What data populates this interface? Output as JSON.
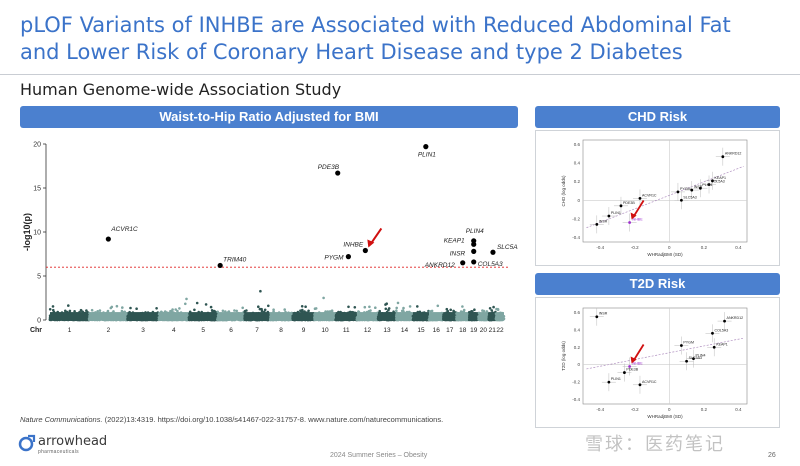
{
  "slide": {
    "title_line1": "pLOF Variants of INHBE are Associated with Reduced Abdominal Fat",
    "title_line2": "and Lower Risk of Coronary Heart Disease and type 2 Diabetes",
    "subtitle": "Human Genome-wide Association Study",
    "citation_journal": "Nature Communications.",
    "citation_rest": " (2022)13:4319. https://doi.org/10.1038/s41467-022-31757-8. www.nature.com/naturecommunications.",
    "footer": "2024 Summer Series – Obesity",
    "page_number": "26",
    "logo_name": "arrowhead",
    "logo_sub": "pharmaceuticals",
    "watermark": "雪球：医药笔记"
  },
  "colors": {
    "title_blue": "#3b73c9",
    "banner_blue": "#4b80cf",
    "manhattan_dark": "#2f5552",
    "manhattan_light": "#7fa6a2",
    "threshold_red": "#e02020",
    "arrow_red": "#d01010",
    "highlight_purple": "#a030d0"
  },
  "chart_data": [
    {
      "type": "scatter",
      "subtype": "manhattan",
      "title": "Waist-to-Hip Ratio Adjusted for BMI",
      "ylabel": "-log10(p)",
      "xlabel": "Chr",
      "ylim": [
        0,
        20
      ],
      "yticks": [
        0,
        5,
        10,
        15,
        20
      ],
      "chromosomes": [
        "1",
        "2",
        "3",
        "4",
        "5",
        "6",
        "7",
        "8",
        "9",
        "10",
        "11",
        "12",
        "13",
        "14",
        "15",
        "16",
        "17",
        "18",
        "19",
        "20",
        "21",
        "22"
      ],
      "chrom_peaks": [
        2.6,
        4.1,
        2.4,
        4.2,
        2.3,
        6.4,
        3.8,
        3.9,
        2.2,
        3.6,
        3.3,
        3.0,
        3.3,
        3.1,
        3.0,
        4.4,
        4.0,
        6.2,
        5.2,
        6.8,
        3.4,
        2.8
      ],
      "threshold": 6,
      "genes": [
        {
          "label": "ACVR1C",
          "chr": "2",
          "pos": 0.5,
          "y": 9.2
        },
        {
          "label": "TRIM40",
          "chr": "6",
          "pos": 0.1,
          "y": 6.2
        },
        {
          "label": "PDE3B",
          "chr": "11",
          "pos": 0.1,
          "y": 16.7
        },
        {
          "label": "PYGM",
          "chr": "11",
          "pos": 0.6,
          "y": 7.2
        },
        {
          "label": "INHBE",
          "chr": "12",
          "pos": 0.4,
          "y": 7.9
        },
        {
          "label": "PLIN1",
          "chr": "15",
          "pos": 0.8,
          "y": 19.7
        },
        {
          "label": "KEAP1",
          "chr": "19",
          "pos": 0.5,
          "y": 8.6
        },
        {
          "label": "PLIN4",
          "chr": "19",
          "pos": 0.5,
          "y": 9.0
        },
        {
          "label": "INSR",
          "chr": "19",
          "pos": 0.5,
          "y": 7.8
        },
        {
          "label": "ANKRD12",
          "chr": "18",
          "pos": 0.5,
          "y": 6.5
        },
        {
          "label": "SLC5A3",
          "chr": "21",
          "pos": 0.6,
          "y": 7.7
        },
        {
          "label": "COL5A3",
          "chr": "19",
          "pos": 0.5,
          "y": 6.6
        }
      ],
      "highlight": "INHBE"
    },
    {
      "type": "scatter",
      "title": "CHD Risk",
      "xlabel": "WHRadjBMI (SD)",
      "ylabel": "CHD (log odds)",
      "xlim": [
        -0.5,
        0.45
      ],
      "ylim": [
        -0.45,
        0.65
      ],
      "xticks": [
        -0.4,
        -0.2,
        0,
        0.2,
        0.4
      ],
      "yticks": [
        -0.4,
        -0.2,
        0,
        0.2,
        0.4,
        0.6
      ],
      "points": [
        {
          "label": "ANKRD12",
          "x": 0.31,
          "y": 0.47
        },
        {
          "label": "KEAP1",
          "x": 0.25,
          "y": 0.21
        },
        {
          "label": "COL5A3",
          "x": 0.23,
          "y": 0.17
        },
        {
          "label": "PLIN4",
          "x": 0.18,
          "y": 0.13
        },
        {
          "label": "INSR",
          "x": 0.13,
          "y": 0.11
        },
        {
          "label": "PYGM",
          "x": 0.05,
          "y": 0.09
        },
        {
          "label": "ACVR1C",
          "x": -0.17,
          "y": 0.02
        },
        {
          "label": "PDE3B",
          "x": -0.28,
          "y": -0.06
        },
        {
          "label": "SLC5A3",
          "x": 0.07,
          "y": 0.0
        },
        {
          "label": "PLIN1",
          "x": -0.35,
          "y": -0.17
        },
        {
          "label": "INSR",
          "x": -0.42,
          "y": -0.26
        },
        {
          "label": "INHBE",
          "x": -0.23,
          "y": -0.24
        }
      ],
      "highlight": "INHBE"
    },
    {
      "type": "scatter",
      "title": "T2D Risk",
      "xlabel": "WHRadjBMI (SD)",
      "ylabel": "T2D (log odds)",
      "xlim": [
        -0.5,
        0.45
      ],
      "ylim": [
        -0.45,
        0.65
      ],
      "xticks": [
        -0.4,
        -0.2,
        0,
        0.2,
        0.4
      ],
      "yticks": [
        -0.4,
        -0.2,
        0,
        0.2,
        0.4,
        0.6
      ],
      "points": [
        {
          "label": "INSR",
          "x": -0.42,
          "y": 0.55
        },
        {
          "label": "ANKRD12",
          "x": 0.32,
          "y": 0.5
        },
        {
          "label": "COL5A3",
          "x": 0.25,
          "y": 0.36
        },
        {
          "label": "PYGM",
          "x": 0.07,
          "y": 0.22
        },
        {
          "label": "KEAP1",
          "x": 0.26,
          "y": 0.2
        },
        {
          "label": "PLIN4",
          "x": 0.14,
          "y": 0.07
        },
        {
          "label": "SLC5A3",
          "x": 0.1,
          "y": 0.04
        },
        {
          "label": "INHBE",
          "x": -0.23,
          "y": -0.02
        },
        {
          "label": "PDE3B",
          "x": -0.26,
          "y": -0.09
        },
        {
          "label": "PLIN1",
          "x": -0.35,
          "y": -0.2
        },
        {
          "label": "ACVR1C",
          "x": -0.17,
          "y": -0.23
        }
      ],
      "highlight": "INHBE"
    }
  ]
}
